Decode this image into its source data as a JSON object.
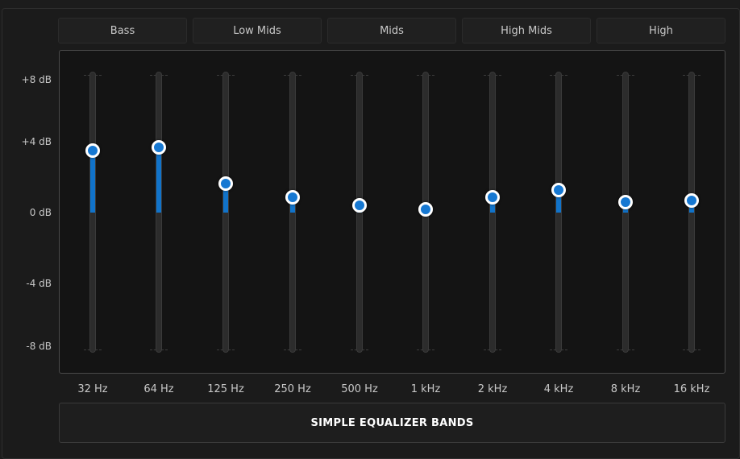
{
  "band_groups": [
    "Bass",
    "Low Mids",
    "Mids",
    "High Mids",
    "High"
  ],
  "y_axis": {
    "labels": [
      "+8 dB",
      "+4 dB",
      "0 dB",
      "-4 dB",
      "-8 dB"
    ],
    "range": [
      -8,
      8
    ]
  },
  "bands": [
    {
      "freq": "32 Hz",
      "gain_db": 3.6
    },
    {
      "freq": "64 Hz",
      "gain_db": 3.8
    },
    {
      "freq": "125 Hz",
      "gain_db": 1.7
    },
    {
      "freq": "250 Hz",
      "gain_db": 0.9
    },
    {
      "freq": "500 Hz",
      "gain_db": 0.4
    },
    {
      "freq": "1 kHz",
      "gain_db": 0.2
    },
    {
      "freq": "2 kHz",
      "gain_db": 0.9
    },
    {
      "freq": "4 kHz",
      "gain_db": 1.3
    },
    {
      "freq": "8 kHz",
      "gain_db": 0.6
    },
    {
      "freq": "16 kHz",
      "gain_db": 0.7
    }
  ],
  "footer_title": "SIMPLE EQUALIZER BANDS",
  "colors": {
    "accent": "#1173c9",
    "knob_border": "#ffffff",
    "background": "#1b1b1b"
  }
}
